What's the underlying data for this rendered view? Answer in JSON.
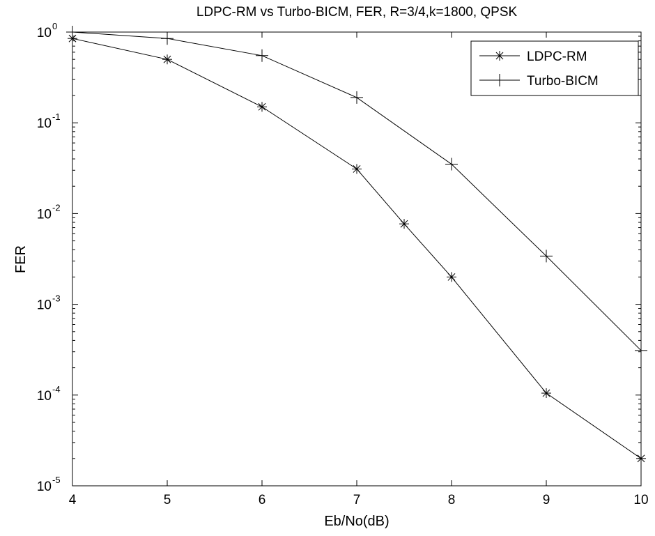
{
  "chart_data": {
    "type": "line",
    "title": "LDPC-RM vs Turbo-BICM,  FER, R=3/4,k=1800, QPSK",
    "xlabel": "Eb/No(dB)",
    "ylabel": "FER",
    "xlim": [
      4,
      10
    ],
    "ylim": [
      1e-05,
      1
    ],
    "yscale": "log",
    "grid": false,
    "legend_position": "top-right",
    "x_ticks": [
      "4",
      "5",
      "6",
      "7",
      "8",
      "9",
      "10"
    ],
    "y_ticks": [
      {
        "base": "10",
        "exp": "0"
      },
      {
        "base": "10",
        "exp": "-1"
      },
      {
        "base": "10",
        "exp": "-2"
      },
      {
        "base": "10",
        "exp": "-3"
      },
      {
        "base": "10",
        "exp": "-4"
      },
      {
        "base": "10",
        "exp": "-5"
      }
    ],
    "series": [
      {
        "name": "LDPC-RM",
        "marker": "asterisk",
        "x": [
          4,
          5,
          6,
          7,
          7.5,
          8,
          9,
          10
        ],
        "y": [
          0.85,
          0.5,
          0.15,
          0.031,
          0.0077,
          0.002,
          0.000105,
          2e-05
        ]
      },
      {
        "name": "Turbo-BICM",
        "marker": "plus",
        "x": [
          4,
          5,
          6,
          7,
          8,
          9,
          10
        ],
        "y": [
          1.0,
          0.85,
          0.55,
          0.19,
          0.035,
          0.0034,
          0.00031
        ]
      }
    ]
  }
}
